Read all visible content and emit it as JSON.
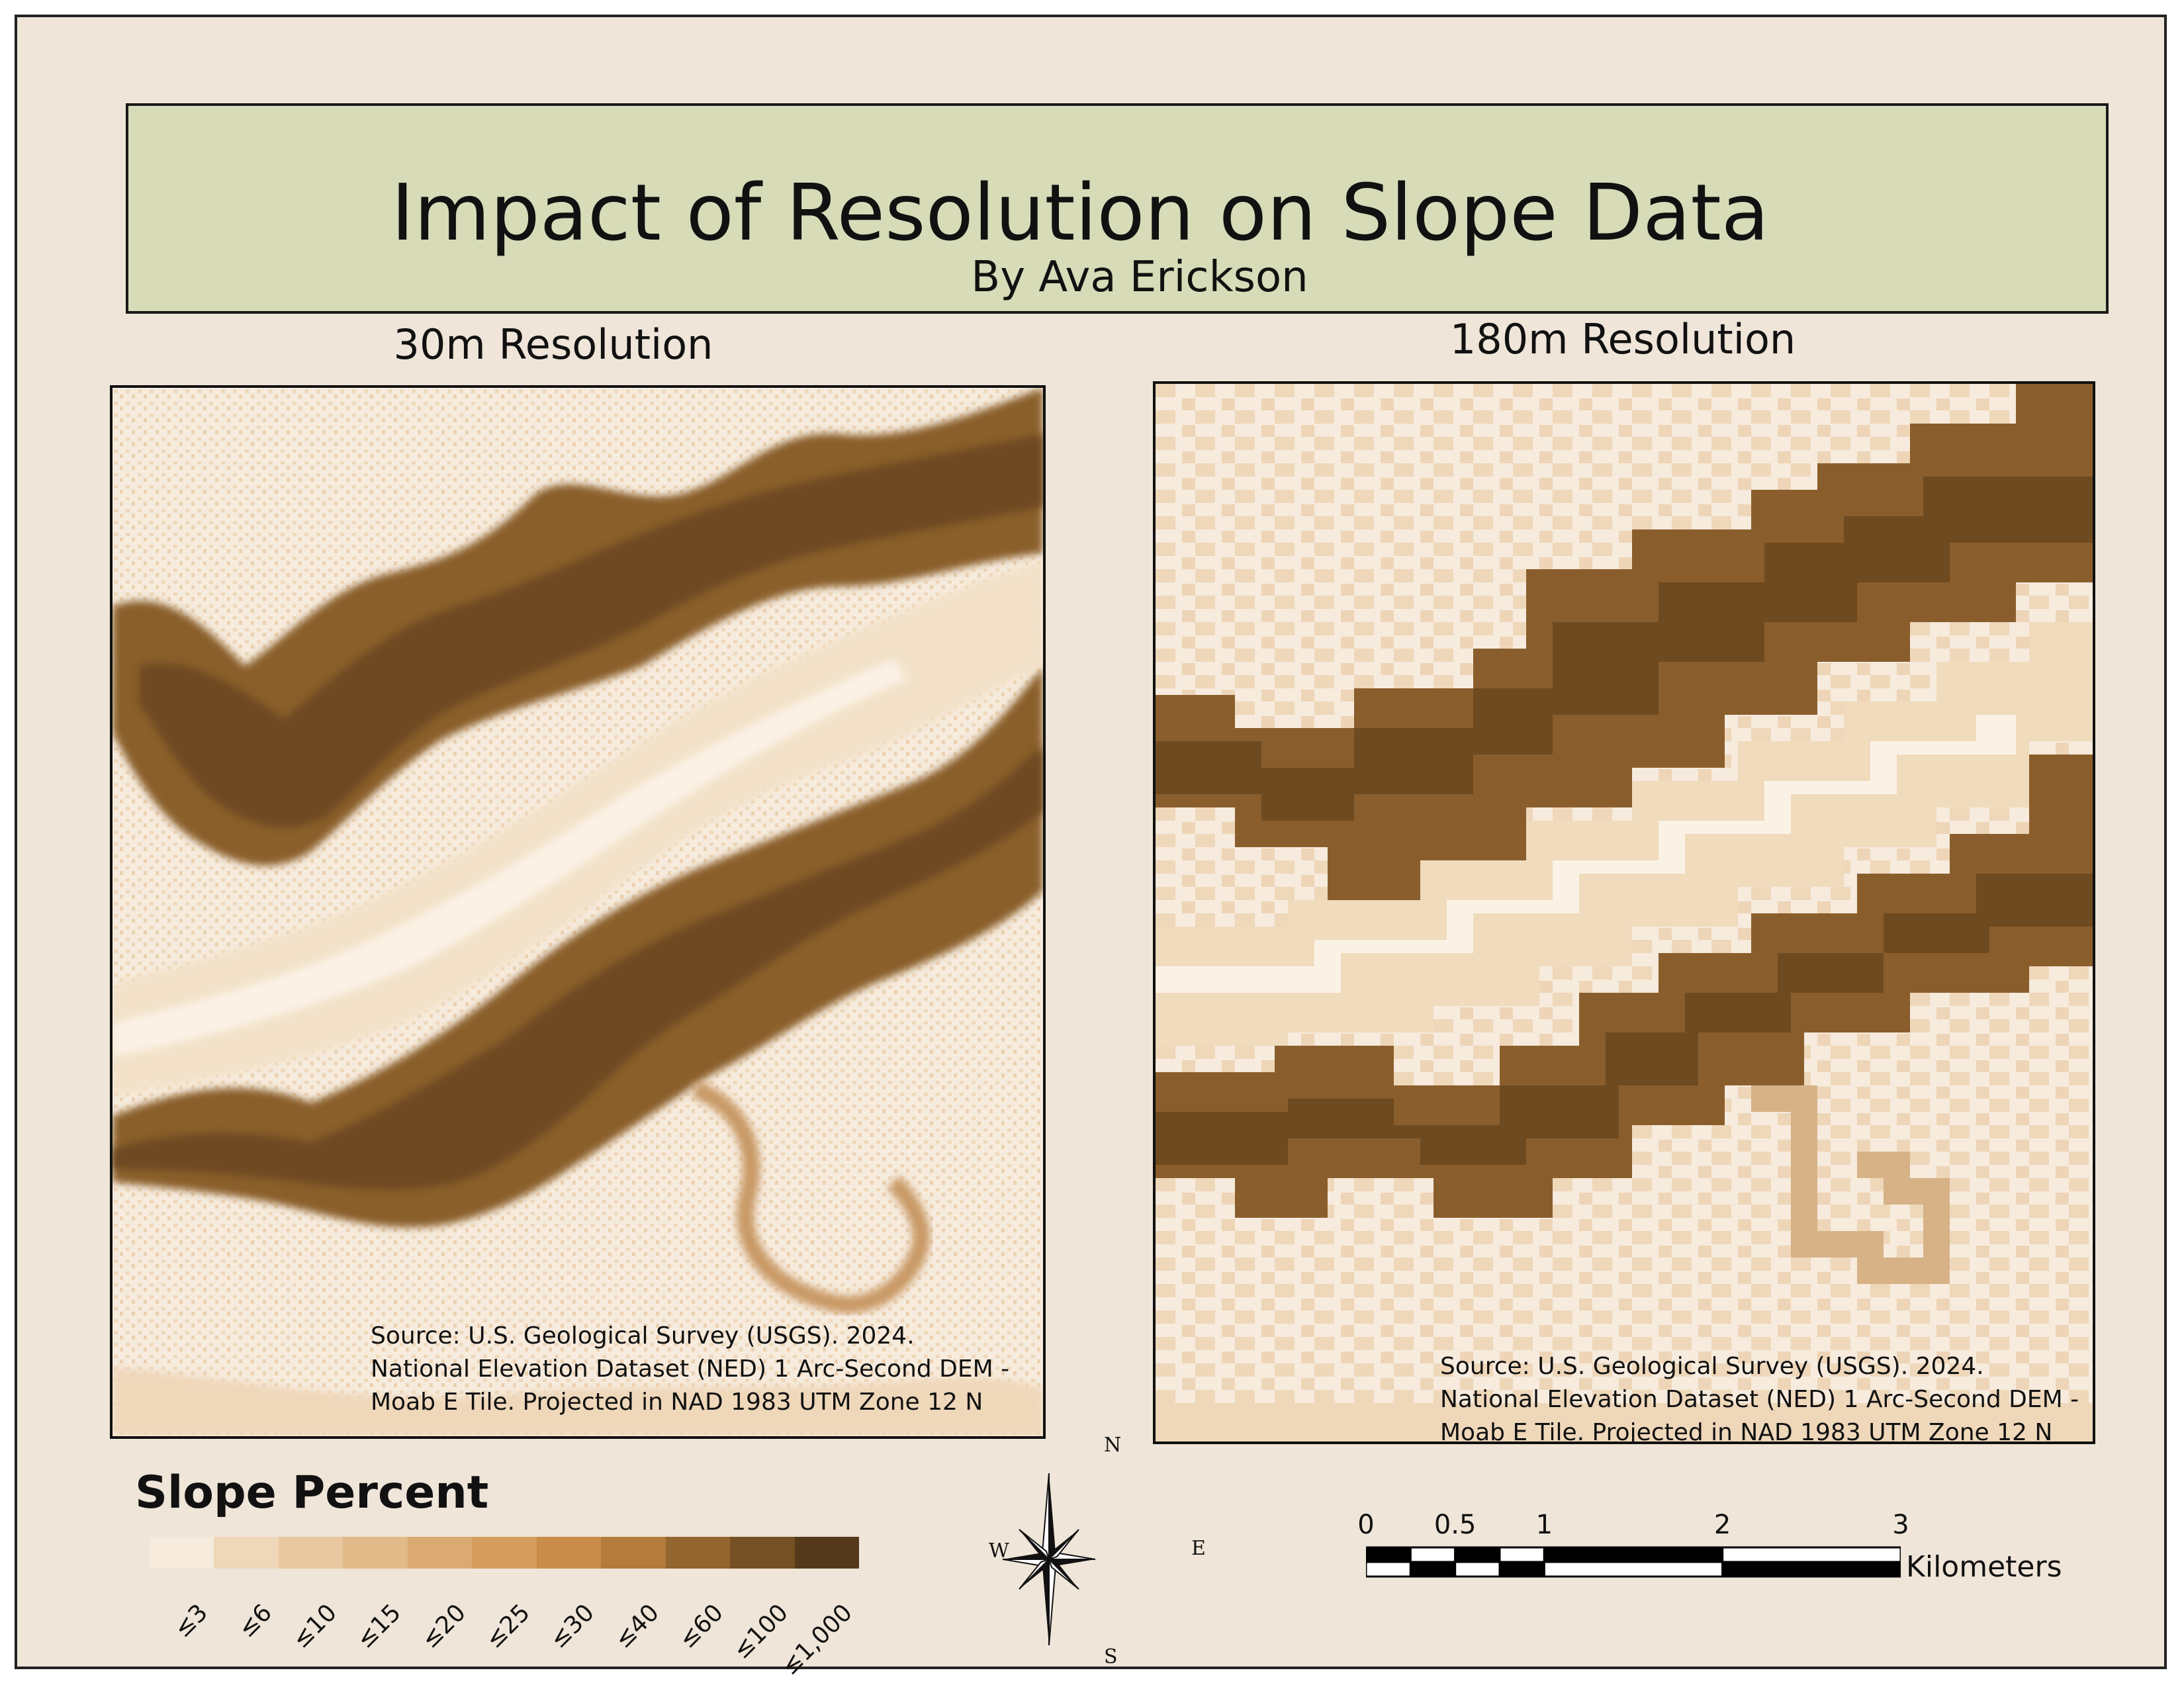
{
  "title": "Impact of Resolution on Slope Data",
  "subtitle": "By Ava Erickson",
  "panels": [
    {
      "label": "30m Resolution",
      "source": [
        "Source: U.S. Geological Survey (USGS). 2024.",
        "National Elevation Dataset (NED) 1 Arc-Second DEM -",
        "Moab E Tile. Projected in NAD 1983 UTM Zone 12 N"
      ]
    },
    {
      "label": "180m Resolution",
      "source": [
        "Source: U.S. Geological Survey (USGS). 2024.",
        "National Elevation Dataset (NED) 1 Arc-Second DEM -",
        "Moab E Tile. Projected in NAD 1983 UTM Zone 12 N"
      ]
    }
  ],
  "legend": {
    "title": "Slope Percent",
    "classes": [
      {
        "label": "≤3",
        "color": "#f6ebdd"
      },
      {
        "label": "≤6",
        "color": "#efd7ba"
      },
      {
        "label": "≤10",
        "color": "#e9c79f"
      },
      {
        "label": "≤15",
        "color": "#e2b988"
      },
      {
        "label": "≤20",
        "color": "#dbaa72"
      },
      {
        "label": "≤25",
        "color": "#d49c5d"
      },
      {
        "label": "≤30",
        "color": "#c98d49"
      },
      {
        "label": "≤40",
        "color": "#b37b3c"
      },
      {
        "label": "≤60",
        "color": "#93652f"
      },
      {
        "label": "≤100",
        "color": "#745024"
      },
      {
        "label": "≤1,000",
        "color": "#543a1a"
      }
    ]
  },
  "compass": {
    "n": "N",
    "s": "S",
    "e": "E",
    "w": "W"
  },
  "scale_bar": {
    "ticks": [
      "0",
      "0.5",
      "1",
      "2",
      "3"
    ],
    "tick_values": [
      0,
      0.5,
      1,
      2,
      3
    ],
    "unit": "Kilometers"
  }
}
